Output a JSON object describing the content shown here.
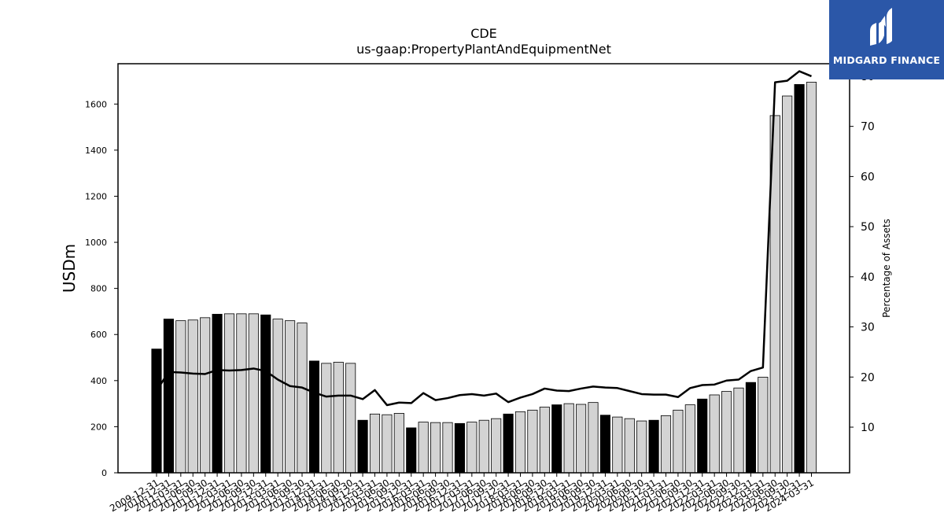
{
  "chart_data": {
    "type": "bar",
    "title": "CDE",
    "subtitle": "us-gaap:PropertyPlantAndEquipmentNet",
    "ylabel": "USDm",
    "ylabel_right": "Percentage of Assets",
    "ylim": [
      0,
      1775
    ],
    "ylim_right": [
      0.9,
      82.5
    ],
    "yticks": [
      0,
      200,
      400,
      600,
      800,
      1000,
      1200,
      1400,
      1600
    ],
    "yticks_right": [
      10,
      20,
      30,
      40,
      50,
      60,
      70,
      80
    ],
    "categories": [
      "2009-12-31",
      "2010-12-31",
      "2011-03-31",
      "2011-06-30",
      "2011-09-30",
      "2011-12-31",
      "2012-03-31",
      "2012-06-30",
      "2012-09-30",
      "2012-12-31",
      "2013-03-31",
      "2013-06-30",
      "2013-09-30",
      "2013-12-31",
      "2014-03-31",
      "2014-06-30",
      "2014-09-30",
      "2014-12-31",
      "2015-03-31",
      "2015-06-30",
      "2015-09-30",
      "2015-12-31",
      "2016-03-31",
      "2016-06-30",
      "2016-09-30",
      "2016-12-31",
      "2017-03-31",
      "2017-06-30",
      "2017-09-30",
      "2017-12-31",
      "2018-03-31",
      "2018-06-30",
      "2018-09-30",
      "2018-12-31",
      "2019-03-31",
      "2019-06-30",
      "2019-09-30",
      "2019-12-31",
      "2020-03-31",
      "2020-06-30",
      "2020-09-30",
      "2020-12-31",
      "2021-03-31",
      "2021-06-30",
      "2021-09-30",
      "2021-12-31",
      "2022-03-31",
      "2022-06-30",
      "2022-09-30",
      "2022-12-31",
      "2023-03-31",
      "2023-06-30",
      "2023-09-30",
      "2023-12-31",
      "2024-03-31"
    ],
    "values": [
      537,
      667,
      660,
      663,
      673,
      688,
      690,
      690,
      690,
      685,
      667,
      660,
      650,
      485,
      475,
      480,
      475,
      228,
      255,
      252,
      258,
      195,
      220,
      218,
      218,
      214,
      220,
      228,
      235,
      255,
      265,
      272,
      285,
      295,
      300,
      297,
      305,
      250,
      242,
      235,
      225,
      228,
      248,
      272,
      295,
      320,
      338,
      353,
      368,
      392,
      415,
      1550,
      1635,
      1685,
      1695
    ],
    "highlight": [
      true,
      true,
      false,
      false,
      false,
      true,
      false,
      false,
      false,
      true,
      false,
      false,
      false,
      true,
      false,
      false,
      false,
      true,
      false,
      false,
      false,
      true,
      false,
      false,
      false,
      true,
      false,
      false,
      false,
      true,
      false,
      false,
      false,
      true,
      false,
      false,
      false,
      true,
      false,
      false,
      false,
      true,
      false,
      false,
      false,
      true,
      false,
      false,
      false,
      true,
      false,
      false,
      false,
      true,
      false
    ],
    "pct_assets": [
      17.3,
      21.0,
      20.9,
      20.7,
      20.6,
      21.4,
      21.3,
      21.4,
      21.7,
      21.2,
      19.5,
      18.2,
      17.9,
      16.9,
      16.1,
      16.3,
      16.3,
      15.6,
      17.4,
      14.4,
      14.9,
      14.8,
      16.8,
      15.4,
      15.8,
      16.4,
      16.6,
      16.3,
      16.7,
      15.0,
      15.9,
      16.6,
      17.7,
      17.3,
      17.2,
      17.7,
      18.1,
      17.9,
      17.8,
      17.2,
      16.6,
      16.5,
      16.5,
      16.0,
      17.8,
      18.4,
      18.5,
      19.3,
      19.5,
      21.2,
      21.9,
      78.8,
      79.1,
      81.0,
      80.0
    ]
  },
  "colors": {
    "bar_highlight": "#000000",
    "bar_regular": "#d3d3d3",
    "bar_edge": "#000000",
    "line": "#000000",
    "logo_bg": "#2b57a8",
    "logo_fg": "#ffffff"
  },
  "logo": {
    "text": "MIDGARD FINANCE"
  }
}
